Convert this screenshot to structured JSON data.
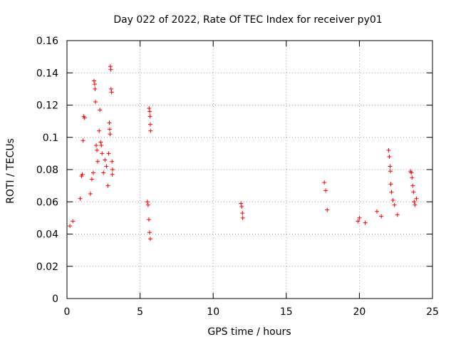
{
  "chart_data": {
    "type": "scatter",
    "title": "Day 022 of 2022, Rate Of TEC Index for receiver py01",
    "xlabel": "GPS time / hours",
    "ylabel": "ROTI / TECUs",
    "xlim": [
      0,
      25
    ],
    "ylim": [
      0,
      0.16
    ],
    "xticks": [
      0,
      5,
      10,
      15,
      20,
      25
    ],
    "yticks": [
      0,
      0.02,
      0.04,
      0.06,
      0.08,
      0.1,
      0.12,
      0.14,
      0.16
    ],
    "xtick_labels": [
      "0",
      "5",
      "10",
      "15",
      "20",
      "25"
    ],
    "ytick_labels": [
      "0",
      "0.02",
      "0.04",
      "0.06",
      "0.08",
      "0.1",
      "0.12",
      "0.14",
      "0.16"
    ],
    "grid": true,
    "marker": "+",
    "color": "#ff0000",
    "series": [
      {
        "points": [
          [
            0.2,
            0.045
          ],
          [
            0.4,
            0.048
          ],
          [
            0.9,
            0.062
          ],
          [
            1.0,
            0.076
          ],
          [
            1.05,
            0.077
          ],
          [
            1.1,
            0.098
          ],
          [
            1.15,
            0.113
          ],
          [
            1.2,
            0.112
          ],
          [
            1.6,
            0.065
          ],
          [
            1.7,
            0.074
          ],
          [
            1.8,
            0.078
          ],
          [
            1.85,
            0.135
          ],
          [
            1.9,
            0.133
          ],
          [
            1.92,
            0.13
          ],
          [
            1.95,
            0.122
          ],
          [
            2.0,
            0.095
          ],
          [
            2.05,
            0.092
          ],
          [
            2.1,
            0.085
          ],
          [
            2.2,
            0.104
          ],
          [
            2.25,
            0.117
          ],
          [
            2.3,
            0.097
          ],
          [
            2.35,
            0.095
          ],
          [
            2.4,
            0.09
          ],
          [
            2.5,
            0.078
          ],
          [
            2.6,
            0.086
          ],
          [
            2.7,
            0.082
          ],
          [
            2.8,
            0.07
          ],
          [
            2.85,
            0.09
          ],
          [
            2.9,
            0.109
          ],
          [
            2.92,
            0.105
          ],
          [
            2.95,
            0.102
          ],
          [
            2.97,
            0.144
          ],
          [
            3.0,
            0.142
          ],
          [
            3.02,
            0.13
          ],
          [
            3.05,
            0.128
          ],
          [
            3.08,
            0.085
          ],
          [
            3.1,
            0.077
          ],
          [
            3.12,
            0.08
          ],
          [
            5.5,
            0.06
          ],
          [
            5.55,
            0.058
          ],
          [
            5.6,
            0.049
          ],
          [
            5.65,
            0.041
          ],
          [
            5.7,
            0.037
          ],
          [
            5.62,
            0.118
          ],
          [
            5.66,
            0.116
          ],
          [
            5.68,
            0.113
          ],
          [
            5.7,
            0.108
          ],
          [
            5.72,
            0.104
          ],
          [
            11.9,
            0.059
          ],
          [
            11.95,
            0.057
          ],
          [
            12.0,
            0.053
          ],
          [
            12.02,
            0.05
          ],
          [
            17.6,
            0.072
          ],
          [
            17.7,
            0.067
          ],
          [
            17.8,
            0.055
          ],
          [
            19.9,
            0.048
          ],
          [
            20.0,
            0.05
          ],
          [
            20.4,
            0.047
          ],
          [
            21.2,
            0.054
          ],
          [
            21.5,
            0.051
          ],
          [
            22.0,
            0.092
          ],
          [
            22.05,
            0.088
          ],
          [
            22.1,
            0.082
          ],
          [
            22.12,
            0.079
          ],
          [
            22.15,
            0.071
          ],
          [
            22.2,
            0.066
          ],
          [
            22.3,
            0.061
          ],
          [
            22.4,
            0.058
          ],
          [
            22.6,
            0.052
          ],
          [
            23.5,
            0.079
          ],
          [
            23.55,
            0.078
          ],
          [
            23.6,
            0.075
          ],
          [
            23.65,
            0.07
          ],
          [
            23.7,
            0.066
          ],
          [
            23.75,
            0.06
          ],
          [
            23.8,
            0.058
          ],
          [
            23.9,
            0.062
          ]
        ]
      }
    ]
  }
}
